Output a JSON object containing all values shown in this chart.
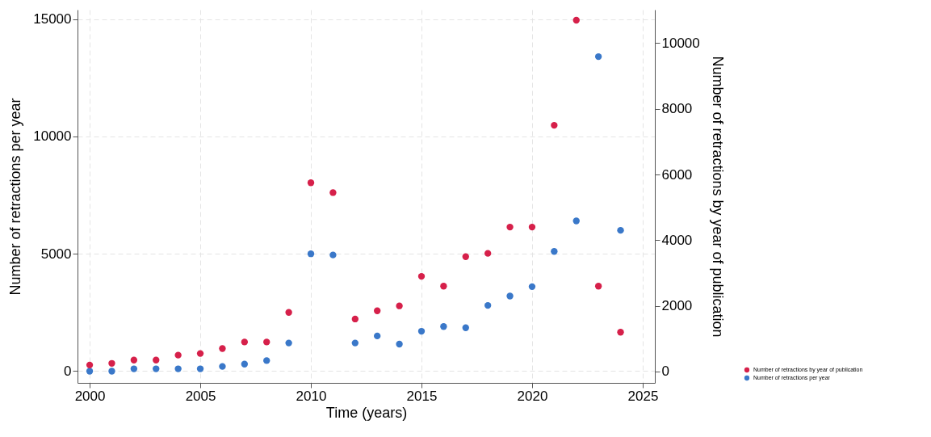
{
  "chart_data": {
    "type": "scatter",
    "xlabel": "Time (years)",
    "ylabel": "Number of retractions per year",
    "y2label": "Number of retractions by year of publication",
    "x": [
      2000,
      2001,
      2002,
      2003,
      2004,
      2005,
      2006,
      2007,
      2008,
      2009,
      2010,
      2011,
      2012,
      2013,
      2014,
      2015,
      2016,
      2017,
      2018,
      2019,
      2020,
      2021,
      2022,
      2023,
      2024
    ],
    "series": [
      {
        "name": "Number of retractions by year of publication",
        "color": "#d6204a",
        "axis": "y2",
        "values": [
          200,
          250,
          350,
          350,
          500,
          550,
          700,
          900,
          900,
          1800,
          5750,
          5450,
          1600,
          1850,
          2000,
          2900,
          2600,
          3500,
          3600,
          4400,
          4400,
          7500,
          10700,
          2600,
          1200
        ]
      },
      {
        "name": "Number of retractions per year",
        "color": "#3a78c9",
        "values": [
          0,
          0,
          100,
          100,
          100,
          100,
          200,
          300,
          450,
          1200,
          5000,
          4950,
          1200,
          1500,
          1150,
          1700,
          1900,
          1850,
          2800,
          3200,
          3600,
          5100,
          6400,
          13400,
          6000
        ]
      }
    ],
    "xlim": [
      1999.45,
      2025.55
    ],
    "xticks": [
      2000,
      2005,
      2010,
      2015,
      2020,
      2025
    ],
    "ylim": [
      -500,
      15400
    ],
    "yticks": [
      0,
      5000,
      10000,
      15000
    ],
    "y2lim": [
      -345,
      11020
    ],
    "y2ticks": [
      0,
      2000,
      4000,
      6000,
      8000,
      10000
    ],
    "grid": true,
    "legend": "bottom right",
    "marker": "circle"
  }
}
